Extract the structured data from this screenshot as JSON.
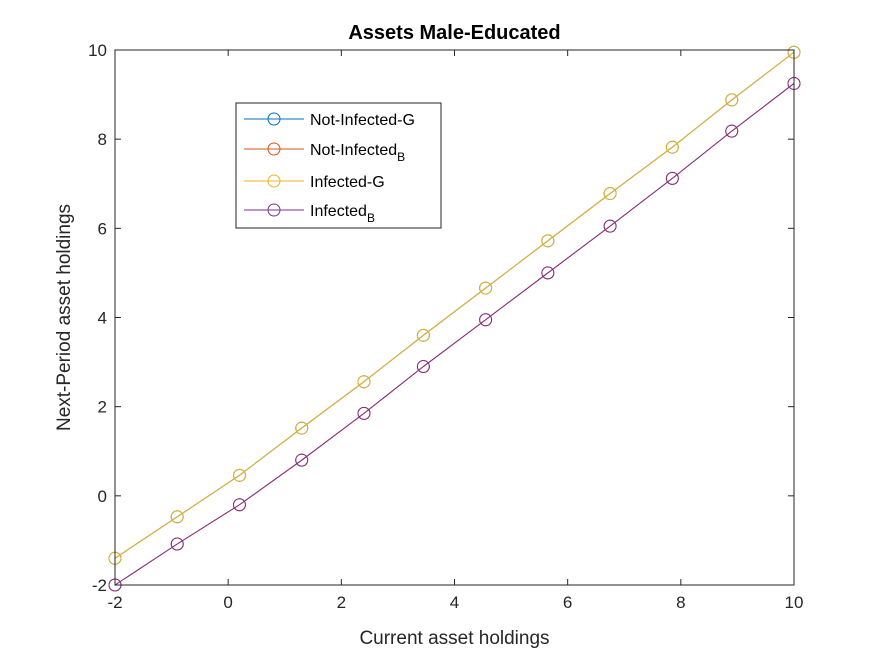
{
  "chart_data": {
    "type": "line",
    "title": "Assets Male-Educated",
    "xlabel": "Current asset holdings",
    "ylabel": "Next-Period asset holdings",
    "xlim": [
      -2,
      10
    ],
    "ylim": [
      -2,
      10
    ],
    "xticks": [
      -2,
      0,
      2,
      4,
      6,
      8,
      10
    ],
    "yticks": [
      -2,
      0,
      2,
      4,
      6,
      8,
      10
    ],
    "grid": false,
    "legend_position": "upper-left",
    "x": [
      -2,
      -0.9,
      0.2,
      1.3,
      2.4,
      3.45,
      4.55,
      5.65,
      6.75,
      7.85,
      8.9,
      10
    ],
    "series": [
      {
        "name": "Not-Infected-G",
        "name_main": "Not-Infected-G",
        "name_sub": "",
        "color": "#0072BD",
        "values": [
          -1.4,
          -0.47,
          0.46,
          1.52,
          2.56,
          3.6,
          4.66,
          5.72,
          6.78,
          7.82,
          8.88,
          9.95
        ]
      },
      {
        "name": "Not-Infected_B",
        "name_main": "Not-Infected",
        "name_sub": "B",
        "color": "#D95319",
        "values": [
          -2,
          -1.08,
          -0.2,
          0.8,
          1.85,
          2.9,
          3.95,
          5.0,
          6.05,
          7.12,
          8.18,
          9.25
        ]
      },
      {
        "name": "Infected-G",
        "name_main": "Infected-G",
        "name_sub": "",
        "color": "#EDB120",
        "values": [
          -1.4,
          -0.47,
          0.46,
          1.52,
          2.56,
          3.6,
          4.66,
          5.72,
          6.78,
          7.82,
          8.88,
          9.95
        ]
      },
      {
        "name": "Infected_B",
        "name_main": "Infected",
        "name_sub": "B",
        "color": "#7E2F8E",
        "values": [
          -2,
          -1.08,
          -0.2,
          0.8,
          1.85,
          2.9,
          3.95,
          5.0,
          6.05,
          7.12,
          8.18,
          9.25
        ]
      }
    ]
  }
}
